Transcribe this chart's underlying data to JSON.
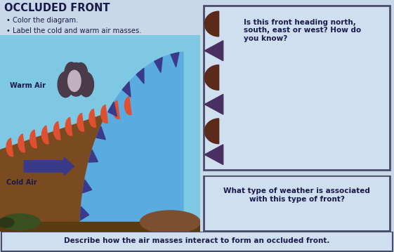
{
  "title": "OCCLUDED FRONT",
  "bullet1": "Color the diagram.",
  "bullet2": "Label the cold and warm air masses.",
  "warm_air_label": "Warm Air",
  "cold_air_label": "Cold Air",
  "question1": "Is this front heading north,\nsouth, east or west? How do\nyou know?",
  "question2": "What type of weather is associated\nwith this type of front?",
  "bottom_text": "Describe how the air masses interact to form an occluded front.",
  "bg_color": "#c8d8e8",
  "sky_color": "#7ec8e3",
  "cold_air_color": "#5aabe0",
  "warm_body_color": "#7a4a20",
  "bumps_color": "#e05030",
  "spikes_color": "#3a3a8a",
  "cloud_dark": "#4a3a4a",
  "cloud_mid": "#6a5a6a",
  "cloud_light": "#c0b0c0",
  "ground_color": "#5a3a10",
  "arrow_color": "#3a3a8a",
  "text_color": "#1a1a4a",
  "box_bg": "#d0dff0",
  "front_sym_color": "#5a2a1a",
  "front_sym_dark": "#4a3060"
}
